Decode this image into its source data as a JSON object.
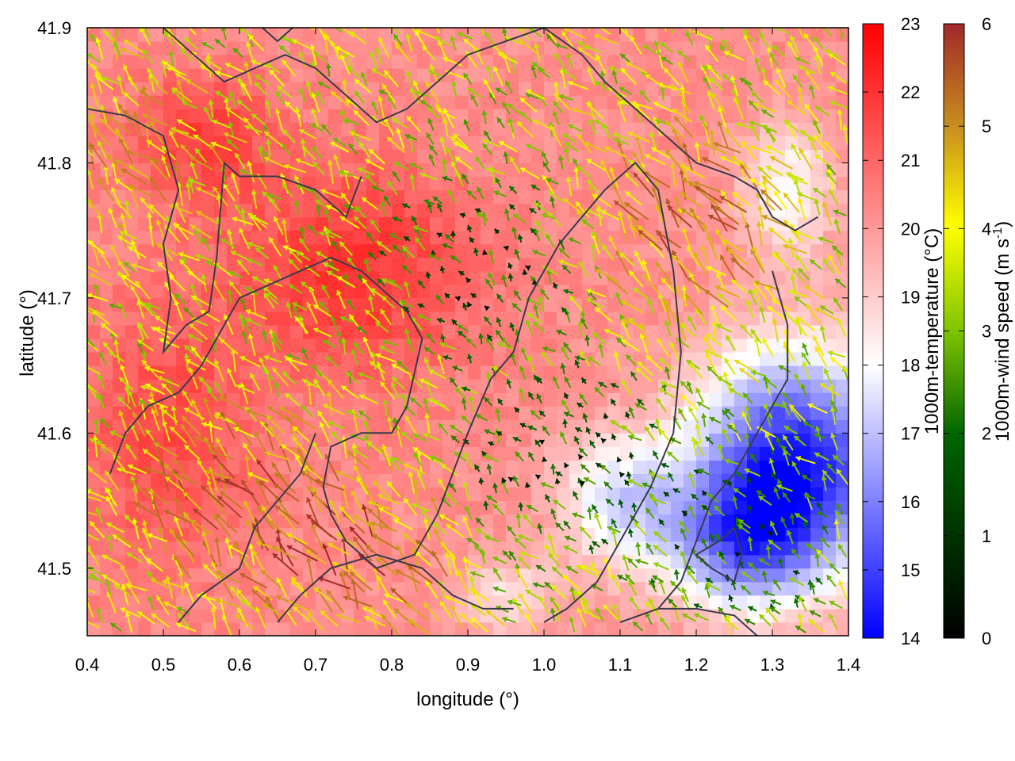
{
  "chart_data": {
    "type": "heatmap",
    "title": "",
    "xlabel": "longitude (°)",
    "ylabel": "latitude (°)",
    "xlim": [
      0.4,
      1.4
    ],
    "ylim": [
      41.45,
      41.9
    ],
    "x_ticks": [
      "0.4",
      "0.5",
      "0.6",
      "0.7",
      "0.8",
      "0.9",
      "1.0",
      "1.1",
      "1.2",
      "1.3",
      "1.4"
    ],
    "y_ticks": [
      "41.5",
      "41.6",
      "41.7",
      "41.8",
      "41.9"
    ],
    "temperature_colorbar": {
      "label": "1000m-temperature (°C)",
      "range": [
        14,
        23
      ],
      "ticks": [
        "14",
        "15",
        "16",
        "17",
        "18",
        "19",
        "20",
        "21",
        "22",
        "23"
      ],
      "colors": [
        "#0000ff",
        "#ffffff",
        "#ff0000"
      ]
    },
    "wind_colorbar": {
      "label_main": "1000m-wind speed (m s",
      "label_sup": "-1",
      "label_end": ")",
      "range": [
        0,
        6
      ],
      "ticks": [
        "0",
        "1",
        "2",
        "3",
        "4",
        "5",
        "6"
      ],
      "colors": [
        "#000000",
        "#006400",
        "#7fc400",
        "#ffff00",
        "#c8901e",
        "#a0282a"
      ]
    },
    "temperature_field": {
      "base": 20.5,
      "cool_regions": [
        {
          "lon": 1.33,
          "lat": 41.58,
          "amp": 6.0,
          "rlon": 0.13,
          "rlat": 0.08
        },
        {
          "lon": 1.26,
          "lat": 41.52,
          "amp": 3.5,
          "rlon": 0.1,
          "rlat": 0.05
        },
        {
          "lon": 1.1,
          "lat": 41.55,
          "amp": 2.5,
          "rlon": 0.08,
          "rlat": 0.05
        },
        {
          "lon": 1.32,
          "lat": 41.78,
          "amp": 2.0,
          "rlon": 0.06,
          "rlat": 0.05
        },
        {
          "lon": 0.95,
          "lat": 41.48,
          "amp": 1.5,
          "rlon": 0.07,
          "rlat": 0.03
        }
      ],
      "warm_regions": [
        {
          "lon": 0.75,
          "lat": 41.72,
          "amp": 1.6,
          "rlon": 0.16,
          "rlat": 0.08
        },
        {
          "lon": 0.5,
          "lat": 41.6,
          "amp": 1.2,
          "rlon": 0.12,
          "rlat": 0.1
        },
        {
          "lon": 0.55,
          "lat": 41.82,
          "amp": 1.3,
          "rlon": 0.1,
          "rlat": 0.05
        }
      ]
    },
    "wind_field": {
      "direction": "mostly north-westward (towards upper-left)",
      "fast_regions": [
        {
          "lon": 0.6,
          "lat": 41.55,
          "speed": 5.5
        },
        {
          "lon": 0.75,
          "lat": 41.5,
          "speed": 5.8
        },
        {
          "lon": 1.2,
          "lat": 41.75,
          "speed": 5.5
        },
        {
          "lon": 0.45,
          "lat": 41.8,
          "speed": 4.5
        }
      ],
      "calm_regions": [
        {
          "lon": 0.92,
          "lat": 41.72,
          "speed": 0.5
        },
        {
          "lon": 1.02,
          "lat": 41.58,
          "speed": 0.3
        },
        {
          "lon": 1.25,
          "lat": 41.52,
          "speed": 0.8
        }
      ],
      "background_speed": 3.0
    },
    "terrain_contours": [
      [
        [
          0.4,
          41.84
        ],
        [
          0.45,
          41.835
        ],
        [
          0.5,
          41.82
        ],
        [
          0.52,
          41.78
        ],
        [
          0.5,
          41.74
        ],
        [
          0.51,
          41.7
        ],
        [
          0.5,
          41.66
        ],
        [
          0.53,
          41.68
        ],
        [
          0.56,
          41.69
        ],
        [
          0.57,
          41.73
        ],
        [
          0.58,
          41.8
        ],
        [
          0.6,
          41.79
        ],
        [
          0.65,
          41.79
        ],
        [
          0.7,
          41.78
        ],
        [
          0.74,
          41.76
        ],
        [
          0.76,
          41.79
        ]
      ],
      [
        [
          0.43,
          41.57
        ],
        [
          0.45,
          41.6
        ],
        [
          0.48,
          41.62
        ],
        [
          0.52,
          41.63
        ],
        [
          0.55,
          41.65
        ],
        [
          0.57,
          41.67
        ],
        [
          0.6,
          41.7
        ],
        [
          0.64,
          41.71
        ],
        [
          0.68,
          41.72
        ],
        [
          0.72,
          41.73
        ],
        [
          0.76,
          41.72
        ],
        [
          0.8,
          41.7
        ],
        [
          0.82,
          41.69
        ],
        [
          0.84,
          41.67
        ],
        [
          0.82,
          41.62
        ],
        [
          0.8,
          41.6
        ],
        [
          0.76,
          41.6
        ],
        [
          0.72,
          41.59
        ],
        [
          0.71,
          41.56
        ],
        [
          0.72,
          41.54
        ],
        [
          0.74,
          41.52
        ],
        [
          0.78,
          41.5
        ],
        [
          0.83,
          41.51
        ],
        [
          0.86,
          41.54
        ],
        [
          0.88,
          41.57
        ],
        [
          0.9,
          41.6
        ],
        [
          0.93,
          41.64
        ],
        [
          0.96,
          41.66
        ],
        [
          0.98,
          41.7
        ],
        [
          1.02,
          41.74
        ],
        [
          1.05,
          41.76
        ],
        [
          1.08,
          41.78
        ],
        [
          1.12,
          41.8
        ],
        [
          1.15,
          41.78
        ],
        [
          1.17,
          41.72
        ],
        [
          1.18,
          41.66
        ],
        [
          1.17,
          41.6
        ],
        [
          1.14,
          41.56
        ],
        [
          1.1,
          41.52
        ],
        [
          1.07,
          41.49
        ],
        [
          1.03,
          41.47
        ],
        [
          1.0,
          41.46
        ]
      ],
      [
        [
          0.52,
          41.46
        ],
        [
          0.55,
          41.48
        ],
        [
          0.6,
          41.5
        ],
        [
          0.62,
          41.53
        ],
        [
          0.65,
          41.55
        ],
        [
          0.68,
          41.57
        ],
        [
          0.7,
          41.6
        ]
      ],
      [
        [
          0.65,
          41.46
        ],
        [
          0.68,
          41.48
        ],
        [
          0.72,
          41.5
        ],
        [
          0.78,
          41.51
        ],
        [
          0.84,
          41.5
        ],
        [
          0.88,
          41.48
        ],
        [
          0.92,
          41.47
        ],
        [
          0.96,
          41.47
        ]
      ],
      [
        [
          1.0,
          41.9
        ],
        [
          1.05,
          41.88
        ],
        [
          1.08,
          41.86
        ],
        [
          1.12,
          41.84
        ],
        [
          1.16,
          41.82
        ],
        [
          1.2,
          41.8
        ],
        [
          1.25,
          41.79
        ],
        [
          1.28,
          41.78
        ],
        [
          1.3,
          41.76
        ],
        [
          1.33,
          41.75
        ],
        [
          1.36,
          41.76
        ]
      ],
      [
        [
          1.3,
          41.72
        ],
        [
          1.32,
          41.68
        ],
        [
          1.32,
          41.64
        ],
        [
          1.3,
          41.62
        ],
        [
          1.28,
          41.6
        ],
        [
          1.25,
          41.57
        ],
        [
          1.22,
          41.55
        ],
        [
          1.2,
          41.52
        ],
        [
          1.18,
          41.49
        ],
        [
          1.15,
          41.47
        ],
        [
          1.1,
          41.46
        ]
      ],
      [
        [
          0.5,
          41.9
        ],
        [
          0.54,
          41.88
        ],
        [
          0.58,
          41.86
        ],
        [
          0.62,
          41.87
        ],
        [
          0.66,
          41.88
        ],
        [
          0.7,
          41.87
        ],
        [
          0.74,
          41.85
        ],
        [
          0.78,
          41.83
        ],
        [
          0.82,
          41.84
        ],
        [
          0.86,
          41.86
        ],
        [
          0.9,
          41.88
        ],
        [
          0.95,
          41.89
        ],
        [
          1.0,
          41.9
        ]
      ],
      [
        [
          0.63,
          41.9
        ],
        [
          0.65,
          41.89
        ],
        [
          0.67,
          41.9
        ]
      ],
      [
        [
          1.2,
          41.51
        ],
        [
          1.23,
          41.52
        ],
        [
          1.25,
          41.53
        ],
        [
          1.26,
          41.51
        ],
        [
          1.25,
          41.49
        ],
        [
          1.22,
          41.5
        ],
        [
          1.2,
          41.51
        ]
      ],
      [
        [
          1.15,
          41.47
        ],
        [
          1.2,
          41.47
        ],
        [
          1.25,
          41.465
        ],
        [
          1.28,
          41.45
        ]
      ]
    ]
  }
}
